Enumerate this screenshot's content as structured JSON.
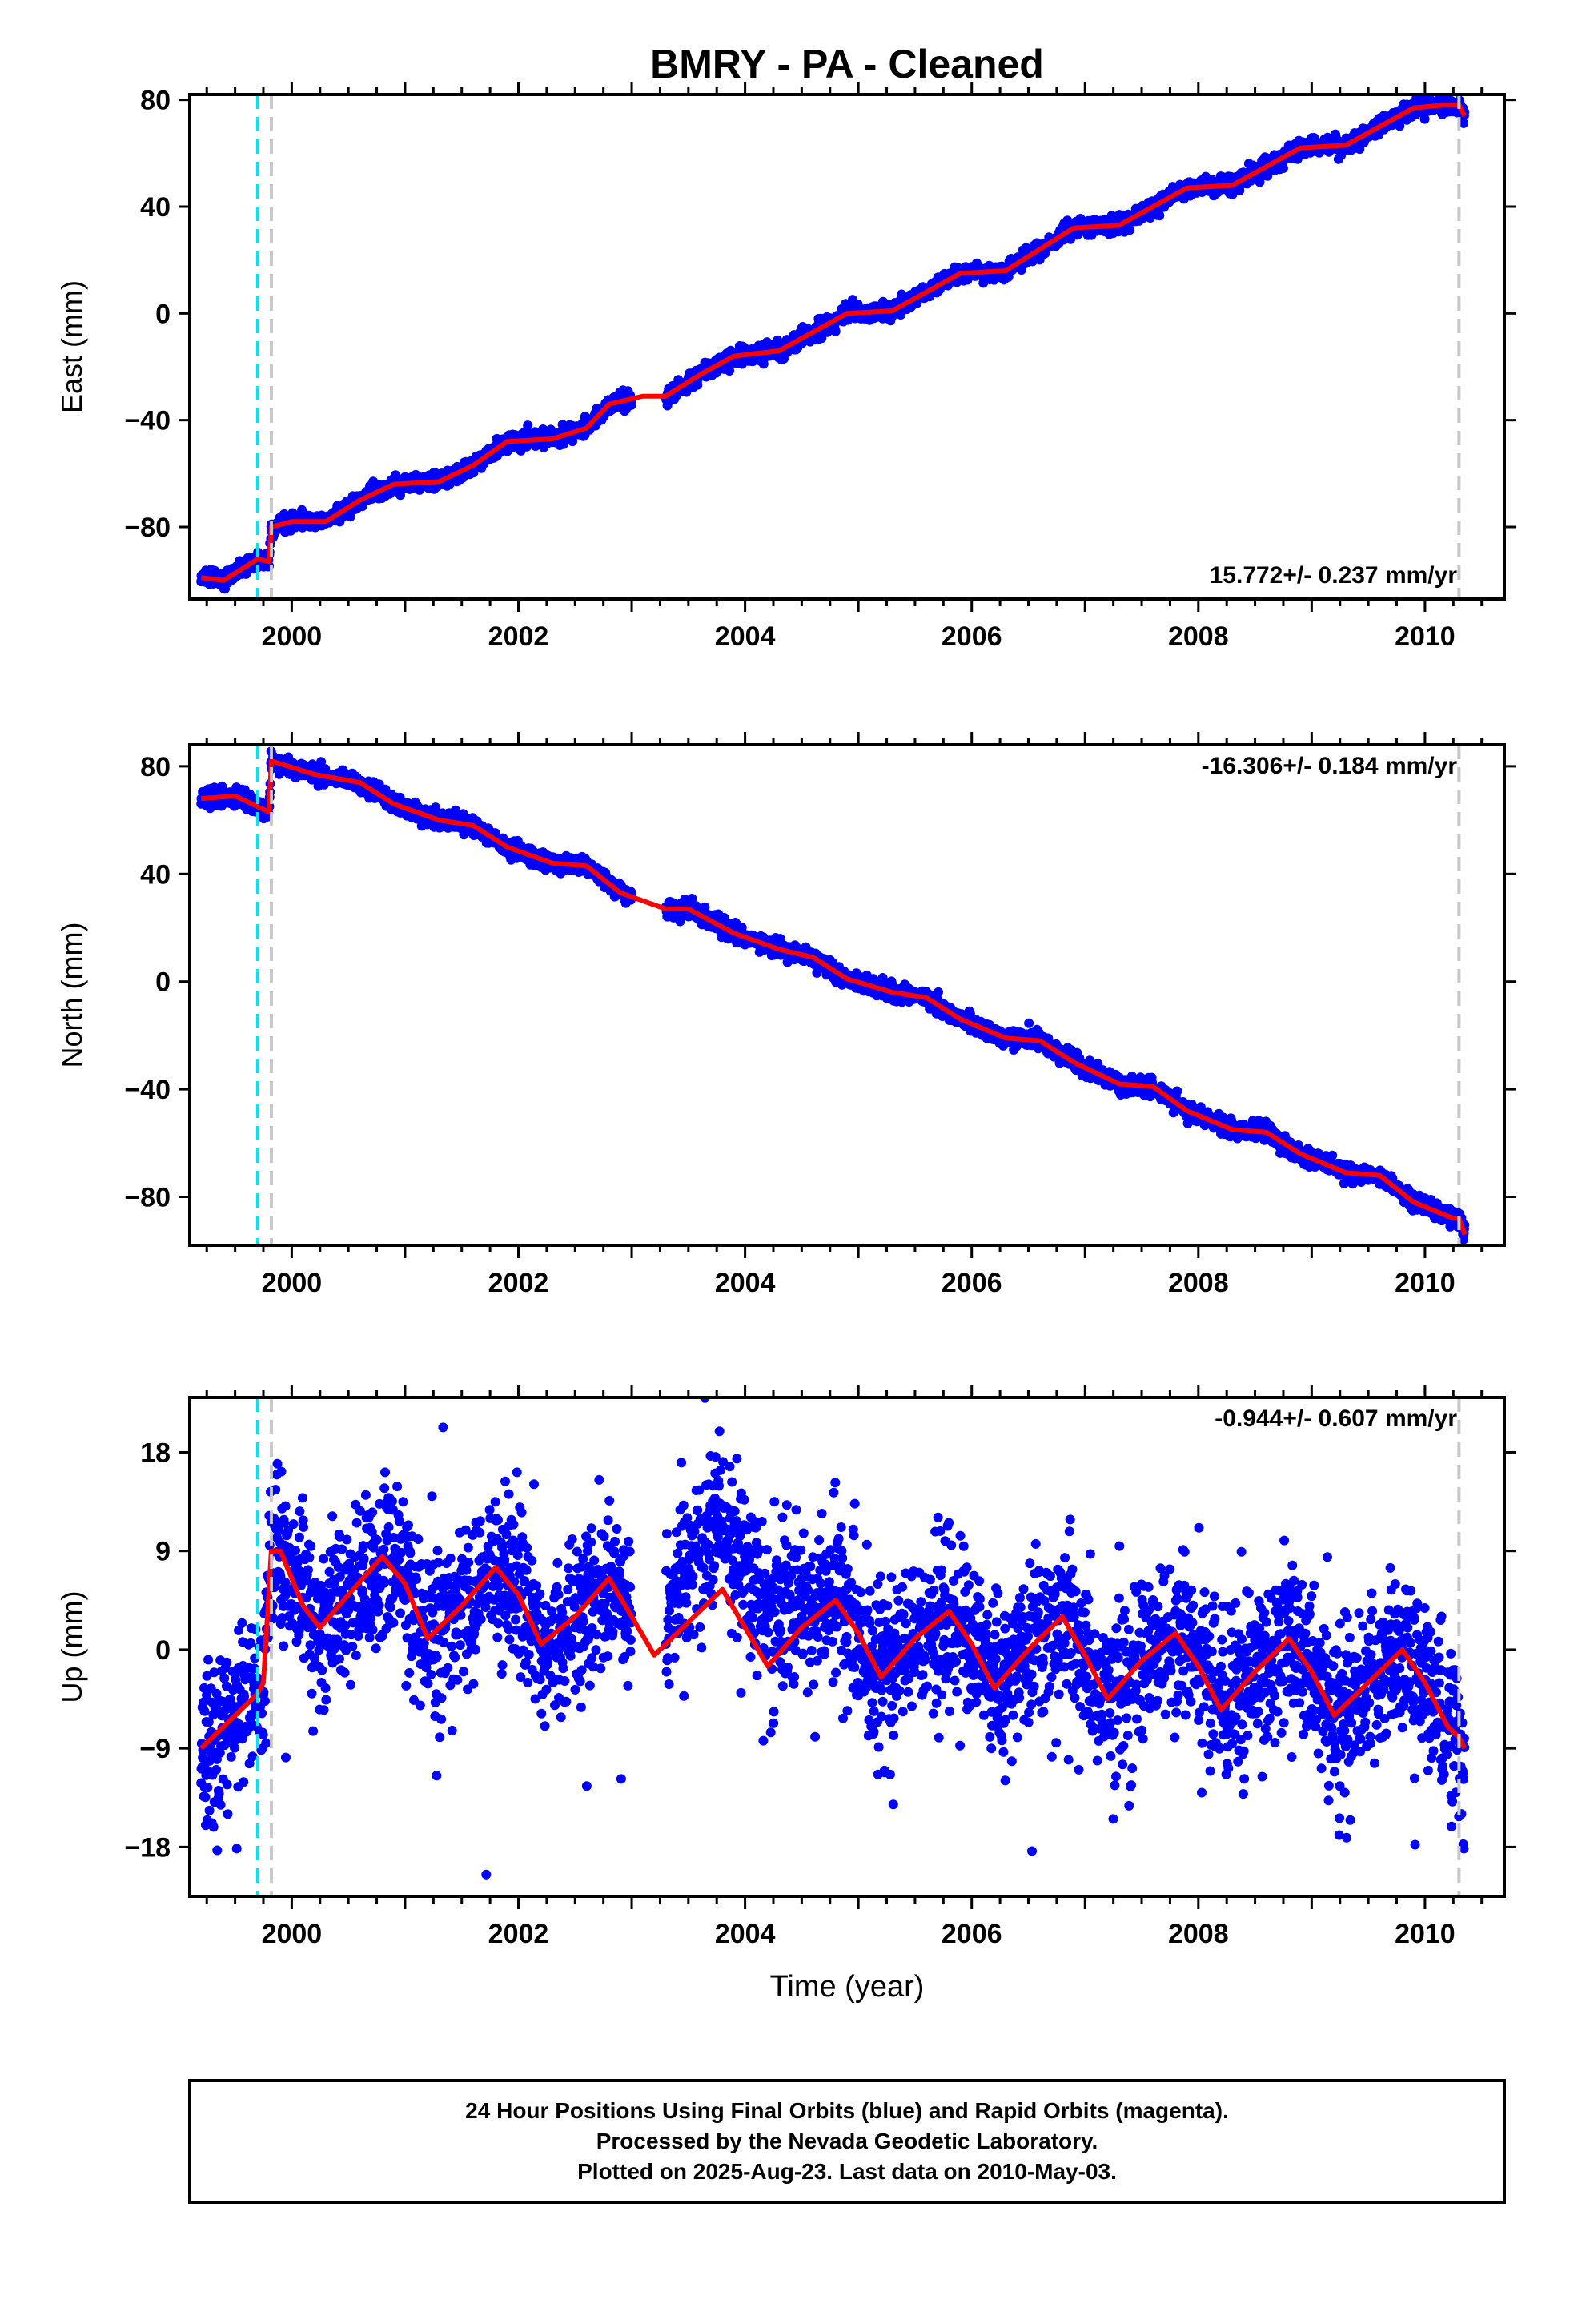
{
  "title": "BMRY  - PA - Cleaned",
  "xlabel": "Time (year)",
  "footer": {
    "line1": "24 Hour Positions Using Final Orbits (blue) and Rapid Orbits (magenta).",
    "line2": "Processed by the Nevada Geodetic Laboratory.",
    "line3": "Plotted on 2025-Aug-23. Last data on 2010-May-03."
  },
  "colors": {
    "data": "#0000ff",
    "fit": "#ff0000",
    "equipment_change": "#00e5ee",
    "data_bounds": "#c8c8c8"
  },
  "chart_data": [
    {
      "type": "scatter",
      "name": "east",
      "ylabel": "East (mm)",
      "rate": "15.772+/- 0.237 mm/yr",
      "rate_position": "bottom-right",
      "xlim": [
        1999.1,
        2010.7
      ],
      "ylim": [
        -107,
        82
      ],
      "yticks": [
        -80,
        -40,
        0,
        40,
        80
      ],
      "xticks": [
        2000,
        2002,
        2004,
        2006,
        2008,
        2010
      ],
      "vlines_cyan": [
        1999.7
      ],
      "vlines_gray": [
        1999.82,
        2010.3
      ],
      "data_range": [
        1999.2,
        2010.35
      ],
      "gap": [
        2003.0,
        2003.3
      ],
      "fit_knots": [
        [
          1999.2,
          -99
        ],
        [
          1999.4,
          -100
        ],
        [
          1999.7,
          -92
        ],
        [
          1999.8,
          -93
        ],
        [
          1999.82,
          -80
        ],
        [
          2000.0,
          -78
        ],
        [
          2000.3,
          -78
        ],
        [
          2000.6,
          -70
        ],
        [
          2000.9,
          -64
        ],
        [
          2001.3,
          -63
        ],
        [
          2001.6,
          -57
        ],
        [
          2001.9,
          -48
        ],
        [
          2002.3,
          -47
        ],
        [
          2002.6,
          -43
        ],
        [
          2002.8,
          -34
        ],
        [
          2003.1,
          -31
        ],
        [
          2003.3,
          -31
        ],
        [
          2003.6,
          -23
        ],
        [
          2003.9,
          -16
        ],
        [
          2004.3,
          -14
        ],
        [
          2004.6,
          -7
        ],
        [
          2004.9,
          0
        ],
        [
          2005.3,
          1
        ],
        [
          2005.6,
          8
        ],
        [
          2005.9,
          15
        ],
        [
          2006.3,
          16
        ],
        [
          2006.6,
          24
        ],
        [
          2006.9,
          32
        ],
        [
          2007.3,
          33
        ],
        [
          2007.6,
          40
        ],
        [
          2007.9,
          47
        ],
        [
          2008.3,
          48
        ],
        [
          2008.6,
          55
        ],
        [
          2008.9,
          62
        ],
        [
          2009.3,
          63
        ],
        [
          2009.6,
          70
        ],
        [
          2009.9,
          77
        ],
        [
          2010.15,
          78
        ],
        [
          2010.3,
          78
        ],
        [
          2010.35,
          74
        ]
      ],
      "noise": 1.5,
      "outlier_rate": 0,
      "seed": 11
    },
    {
      "type": "scatter",
      "name": "north",
      "ylabel": "North (mm)",
      "rate": "-16.306+/- 0.184 mm/yr",
      "rate_position": "top-right",
      "xlim": [
        1999.1,
        2010.7
      ],
      "ylim": [
        -98,
        88
      ],
      "yticks": [
        -80,
        -40,
        0,
        40,
        80
      ],
      "xticks": [
        2000,
        2002,
        2004,
        2006,
        2008,
        2010
      ],
      "vlines_cyan": [
        1999.7
      ],
      "vlines_gray": [
        1999.82,
        2010.3
      ],
      "data_range": [
        1999.2,
        2010.35
      ],
      "gap": [
        2003.0,
        2003.3
      ],
      "fit_knots": [
        [
          1999.2,
          68
        ],
        [
          1999.5,
          69
        ],
        [
          1999.8,
          63
        ],
        [
          1999.82,
          82
        ],
        [
          2000.2,
          77
        ],
        [
          2000.6,
          74
        ],
        [
          2000.9,
          66
        ],
        [
          2001.3,
          60
        ],
        [
          2001.6,
          58
        ],
        [
          2001.9,
          50
        ],
        [
          2002.3,
          44
        ],
        [
          2002.6,
          43
        ],
        [
          2002.9,
          33
        ],
        [
          2003.3,
          27
        ],
        [
          2003.5,
          27
        ],
        [
          2003.9,
          18
        ],
        [
          2004.3,
          12
        ],
        [
          2004.6,
          9
        ],
        [
          2004.9,
          1
        ],
        [
          2005.3,
          -4
        ],
        [
          2005.6,
          -6
        ],
        [
          2005.9,
          -14
        ],
        [
          2006.3,
          -21
        ],
        [
          2006.6,
          -22
        ],
        [
          2006.9,
          -30
        ],
        [
          2007.3,
          -38
        ],
        [
          2007.6,
          -39
        ],
        [
          2007.9,
          -48
        ],
        [
          2008.3,
          -55
        ],
        [
          2008.6,
          -56
        ],
        [
          2008.9,
          -64
        ],
        [
          2009.3,
          -71
        ],
        [
          2009.6,
          -72
        ],
        [
          2009.9,
          -82
        ],
        [
          2010.25,
          -88
        ],
        [
          2010.3,
          -88
        ],
        [
          2010.35,
          -94
        ]
      ],
      "noise": 1.5,
      "outlier_rate": 0,
      "seed": 23
    },
    {
      "type": "scatter",
      "name": "up",
      "ylabel": "Up (mm)",
      "rate": "-0.944+/- 0.607 mm/yr",
      "rate_position": "top-right",
      "xlim": [
        1999.1,
        2010.7
      ],
      "ylim": [
        -22.5,
        23
      ],
      "yticks": [
        -18,
        -9,
        0,
        9,
        18
      ],
      "xticks": [
        2000,
        2002,
        2004,
        2006,
        2008,
        2010
      ],
      "vlines_cyan": [
        1999.7
      ],
      "vlines_gray": [
        1999.82,
        2010.3
      ],
      "data_range": [
        1999.2,
        2010.35
      ],
      "gap": [
        2003.0,
        2003.3
      ],
      "fit_knots": [
        [
          1999.2,
          -9
        ],
        [
          1999.4,
          -7
        ],
        [
          1999.7,
          -4
        ],
        [
          1999.75,
          -3
        ],
        [
          1999.82,
          9
        ],
        [
          1999.9,
          9
        ],
        [
          2000.1,
          4
        ],
        [
          2000.25,
          2
        ],
        [
          2000.5,
          5
        ],
        [
          2000.8,
          8.5
        ],
        [
          2001.0,
          6
        ],
        [
          2001.2,
          1
        ],
        [
          2001.5,
          4
        ],
        [
          2001.8,
          7.5
        ],
        [
          2002.0,
          5
        ],
        [
          2002.2,
          0.5
        ],
        [
          2002.5,
          3
        ],
        [
          2002.8,
          6.5
        ],
        [
          2003.0,
          3
        ],
        [
          2003.2,
          -0.5
        ],
        [
          2003.5,
          2.5
        ],
        [
          2003.8,
          5.5
        ],
        [
          2004.0,
          2
        ],
        [
          2004.2,
          -1.5
        ],
        [
          2004.5,
          2
        ],
        [
          2004.8,
          4.5
        ],
        [
          2005.0,
          1.5
        ],
        [
          2005.2,
          -2.5
        ],
        [
          2005.5,
          1
        ],
        [
          2005.8,
          3.5
        ],
        [
          2006.0,
          0.5
        ],
        [
          2006.2,
          -3.5
        ],
        [
          2006.5,
          0
        ],
        [
          2006.8,
          3
        ],
        [
          2007.0,
          -0.5
        ],
        [
          2007.2,
          -4.5
        ],
        [
          2007.5,
          -1
        ],
        [
          2007.8,
          1.5
        ],
        [
          2008.0,
          -1.5
        ],
        [
          2008.2,
          -5.5
        ],
        [
          2008.5,
          -2
        ],
        [
          2008.8,
          1
        ],
        [
          2009.0,
          -2
        ],
        [
          2009.2,
          -6
        ],
        [
          2009.5,
          -3
        ],
        [
          2009.8,
          0
        ],
        [
          2010.0,
          -3
        ],
        [
          2010.2,
          -7
        ],
        [
          2010.3,
          -8
        ],
        [
          2010.35,
          -9
        ]
      ],
      "noise": 3.5,
      "outlier_rate": 0.04,
      "seed": 37
    }
  ]
}
